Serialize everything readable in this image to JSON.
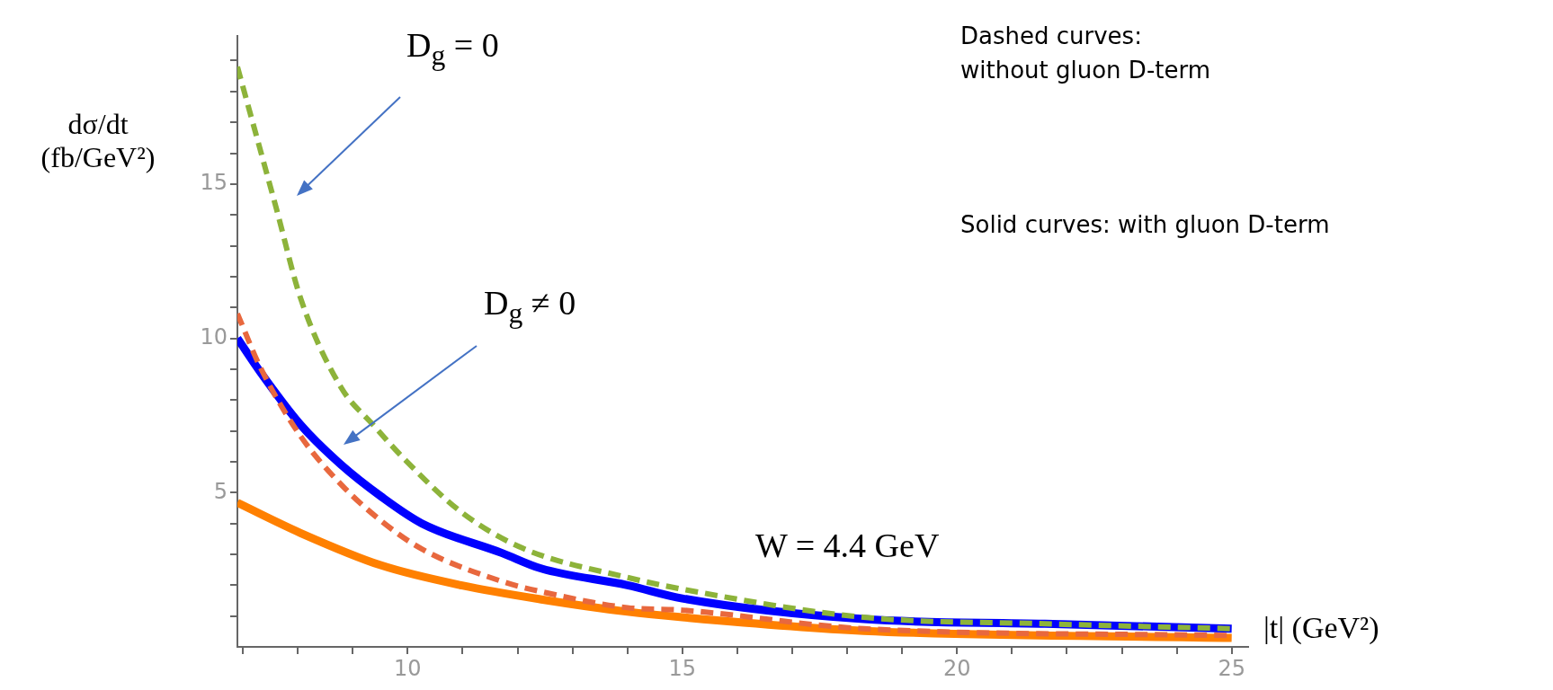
{
  "chart_data": {
    "type": "line",
    "ylabel": "dσ/dt (fb/GeV²)",
    "xlabel": "|t| (GeV²)",
    "xlim": [
      6.9,
      25.3
    ],
    "ylim": [
      0,
      19.8
    ],
    "xticks": [
      {
        "value": 7,
        "label": null
      },
      {
        "value": 8,
        "label": null
      },
      {
        "value": 9,
        "label": null
      },
      10,
      {
        "value": 11,
        "label": null
      },
      {
        "value": 12,
        "label": null
      },
      {
        "value": 13,
        "label": null
      },
      {
        "value": 14,
        "label": null
      },
      15,
      {
        "value": 16,
        "label": null
      },
      {
        "value": 17,
        "label": null
      },
      {
        "value": 18,
        "label": null
      },
      {
        "value": 19,
        "label": null
      },
      20,
      {
        "value": 21,
        "label": null
      },
      {
        "value": 22,
        "label": null
      },
      {
        "value": 23,
        "label": null
      },
      {
        "value": 24,
        "label": null
      },
      25
    ],
    "yticks": [
      {
        "value": 1,
        "label": null
      },
      {
        "value": 2,
        "label": null
      },
      {
        "value": 3,
        "label": null
      },
      {
        "value": 4,
        "label": null
      },
      5,
      {
        "value": 6,
        "label": null
      },
      {
        "value": 7,
        "label": null
      },
      {
        "value": 8,
        "label": null
      },
      {
        "value": 9,
        "label": null
      },
      10,
      {
        "value": 11,
        "label": null
      },
      {
        "value": 12,
        "label": null
      },
      {
        "value": 13,
        "label": null
      },
      {
        "value": 14,
        "label": null
      },
      15,
      {
        "value": 16,
        "label": null
      },
      {
        "value": 17,
        "label": null
      },
      {
        "value": 18,
        "label": null
      },
      {
        "value": 19,
        "label": null
      }
    ],
    "legend": false,
    "marker": "none",
    "series": [
      {
        "color": "#8db33a",
        "line_style": "dashed",
        "x": [
          6.9,
          7.61,
          8.05,
          8.79,
          9.37,
          9.96,
          10.99,
          12.09,
          14.0,
          15,
          18.3,
          21.6,
          25
        ],
        "values": [
          18.8,
          14.2,
          11.3,
          8.4,
          7.2,
          6.05,
          4.35,
          3.2,
          2.25,
          1.87,
          0.96,
          0.75,
          0.59
        ]
      },
      {
        "color": "#0000ff",
        "line_style": "solid",
        "x": [
          6.9,
          7.32,
          8.05,
          8.79,
          9.52,
          10.26,
          11.72,
          12.43,
          14.0,
          15,
          18.3,
          21.6,
          25
        ],
        "values": [
          10.0,
          8.9,
          7.2,
          5.9,
          4.87,
          4.0,
          3.04,
          2.54,
          2.0,
          1.57,
          0.9,
          0.75,
          0.59
        ]
      },
      {
        "color": "#e8683e",
        "line_style": "dashed",
        "x": [
          6.9,
          7.32,
          8.05,
          8.79,
          9.52,
          10.26,
          11.72,
          12.43,
          14.0,
          15,
          18.3,
          25
        ],
        "values": [
          10.8,
          9.05,
          6.83,
          5.26,
          4.08,
          3.17,
          2.12,
          1.79,
          1.27,
          1.19,
          0.59,
          0.37
        ]
      },
      {
        "color": "#ff8000",
        "line_style": "solid",
        "x": [
          6.9,
          8.05,
          9.52,
          10.99,
          12.46,
          14.0,
          15,
          18.3,
          25
        ],
        "values": [
          4.67,
          3.69,
          2.64,
          1.99,
          1.53,
          1.14,
          0.96,
          0.52,
          0.29
        ]
      }
    ],
    "annotations": [
      "D$_{g}$ = 0",
      "D$_{g}$ ≠ 0",
      "W = 4.4 GeV",
      "Dashed curves:\nwithout gluon D-term",
      "Solid curves: with gluon D-term"
    ]
  }
}
